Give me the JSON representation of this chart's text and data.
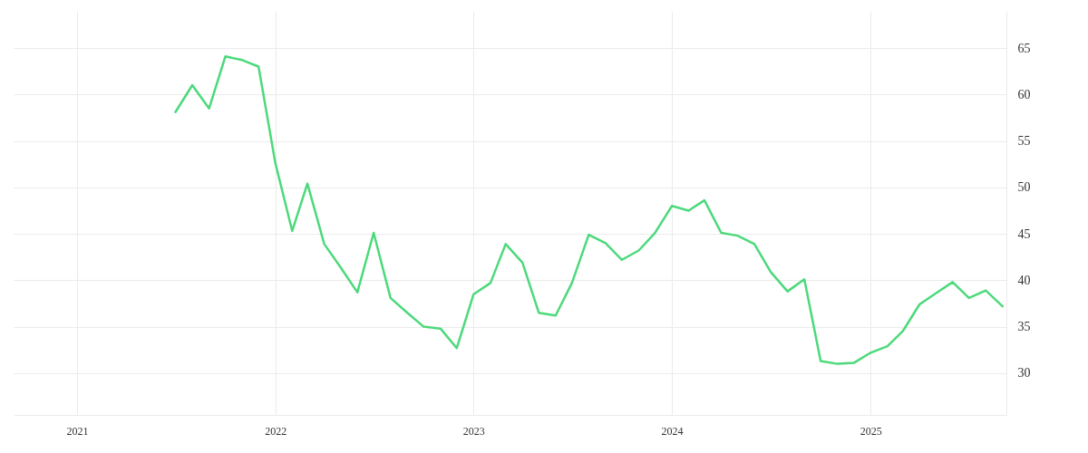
{
  "chart_data": {
    "type": "line",
    "x": [
      "2021-07",
      "2021-08",
      "2021-09",
      "2021-10",
      "2021-11",
      "2021-12",
      "2022-01",
      "2022-02",
      "2022-03",
      "2022-04",
      "2022-05",
      "2022-06",
      "2022-07",
      "2022-08",
      "2022-09",
      "2022-10",
      "2022-11",
      "2022-12",
      "2023-01",
      "2023-02",
      "2023-03",
      "2023-04",
      "2023-05",
      "2023-06",
      "2023-07",
      "2023-08",
      "2023-09",
      "2023-10",
      "2023-11",
      "2023-12",
      "2024-01",
      "2024-02",
      "2024-03",
      "2024-04",
      "2024-05",
      "2024-06",
      "2024-07",
      "2024-08",
      "2024-09",
      "2024-10",
      "2024-11",
      "2024-12",
      "2025-01",
      "2025-02",
      "2025-03",
      "2025-04",
      "2025-05",
      "2025-06",
      "2025-07",
      "2025-08",
      "2025-09"
    ],
    "series": [
      {
        "color": "#4cd97b",
        "values": [
          58.1,
          61.0,
          58.5,
          64.1,
          63.7,
          63.0,
          52.6,
          45.3,
          50.4,
          43.9,
          41.4,
          38.7,
          45.1,
          38.1,
          36.5,
          35.0,
          34.8,
          32.7,
          38.5,
          39.7,
          43.9,
          41.9,
          36.5,
          36.2,
          39.7,
          44.9,
          44.0,
          42.2,
          43.2,
          45.1,
          48.0,
          47.5,
          48.6,
          45.1,
          44.8,
          43.9,
          40.9,
          38.8,
          40.1,
          31.3,
          31.0,
          31.1,
          32.2,
          32.9,
          34.5,
          37.4,
          38.6,
          39.8,
          38.1,
          38.9,
          37.2
        ]
      }
    ],
    "xlim": [
      "2020-09-06",
      "2025-09-08"
    ],
    "xticks": [
      "2021",
      "2022",
      "2023",
      "2024",
      "2025"
    ],
    "ylim": [
      25.5,
      69
    ],
    "yticks": [
      30,
      35,
      40,
      45,
      50,
      55,
      60,
      65
    ],
    "grid": true,
    "marker": "none",
    "line_style": "solid"
  }
}
